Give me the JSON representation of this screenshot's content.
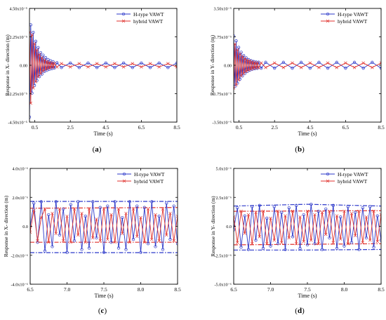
{
  "colors": {
    "h_type": "#2b37c9",
    "hybrid": "#e0322d",
    "axis": "#000000"
  },
  "chart_data": [
    {
      "panel_label": "(a)",
      "type": "line",
      "xlabel": "Time (s)",
      "ylabel": "Response in X- direction (m)",
      "xlim": [
        0.2,
        8.5
      ],
      "ylim": [
        -4.5e-05,
        4.5e-05
      ],
      "xticks": [
        0.5,
        2.5,
        4.5,
        6.5,
        8.5
      ],
      "xtick_labels": [
        "0.5",
        "2.5",
        "4.5",
        "6.5",
        "8.5"
      ],
      "yticks": [
        -4.5e-05,
        -2.25e-05,
        0,
        2.25e-05,
        4.5e-05
      ],
      "ytick_labels": [
        "-4.50x10⁻⁵",
        "-2.25x10⁻⁵",
        "0.00",
        "2.25x10⁻⁵",
        "4.50x10⁻⁵"
      ],
      "legend": {
        "position": "top-right",
        "entries": [
          "H-type VAWT",
          "hybrid VAWT"
        ]
      },
      "series": [
        {
          "name": "H-type VAWT",
          "color": "#2b37c9",
          "x": [
            0.2,
            0.27,
            0.34,
            0.41,
            0.48,
            0.55,
            0.62,
            0.69,
            0.76,
            0.83,
            0.9,
            0.97,
            1.04,
            1.11,
            1.18,
            1.25,
            1.32,
            1.39,
            1.46,
            1.53,
            1.6,
            1.75,
            2.0,
            2.5,
            3.0,
            3.5,
            4.0,
            4.5,
            5.0,
            5.5,
            6.0,
            6.5,
            7.0,
            7.5,
            8.0,
            8.5
          ],
          "y": [
            -4.1e-05,
            3.2e-05,
            -2.2e-05,
            2.6e-05,
            -1.6e-05,
            1.9e-05,
            -1.2e-05,
            1.4e-05,
            -9e-06,
            1e-05,
            -7e-06,
            8e-06,
            -5e-06,
            6e-06,
            -4e-06,
            4.5e-06,
            -3.2e-06,
            3.5e-06,
            -2.6e-06,
            2.8e-06,
            -2.2e-06,
            2e-06,
            -1.8e-06,
            1.8e-06,
            -1.8e-06,
            1.8e-06,
            -1.8e-06,
            1.8e-06,
            -1.8e-06,
            1.8e-06,
            -1.8e-06,
            1.8e-06,
            -1.8e-06,
            1.8e-06,
            -1.8e-06,
            1.8e-06
          ]
        },
        {
          "name": "hybrid VAWT",
          "color": "#e0322d",
          "x": [
            0.2,
            0.27,
            0.34,
            0.41,
            0.48,
            0.55,
            0.62,
            0.69,
            0.76,
            0.83,
            0.9,
            0.97,
            1.04,
            1.11,
            1.18,
            1.25,
            1.32,
            1.39,
            1.46,
            1.53,
            1.6,
            1.75,
            2.0,
            2.5,
            3.0,
            3.5,
            4.0,
            4.5,
            5.0,
            5.5,
            6.0,
            6.5,
            7.0,
            7.5,
            8.0,
            8.5
          ],
          "y": [
            2.6e-05,
            -3e-05,
            2.4e-05,
            -1.8e-05,
            1.7e-05,
            -1.3e-05,
            1.2e-05,
            -9e-06,
            8.5e-06,
            -6.5e-06,
            6e-06,
            -4.5e-06,
            4.2e-06,
            -3.2e-06,
            3e-06,
            -2.4e-06,
            2.2e-06,
            -1.9e-06,
            1.8e-06,
            -1.6e-06,
            1.5e-06,
            -1.4e-06,
            1.3e-06,
            -1.3e-06,
            1.3e-06,
            -1.3e-06,
            1.3e-06,
            -1.3e-06,
            1.3e-06,
            -1.3e-06,
            1.3e-06,
            -1.3e-06,
            1.3e-06,
            -1.3e-06,
            1.3e-06,
            -1.3e-06
          ]
        }
      ]
    },
    {
      "panel_label": "(b)",
      "type": "line",
      "xlabel": "Time (s)",
      "ylabel": "Response in Y- direction (m)",
      "xlim": [
        0.2,
        8.5
      ],
      "ylim": [
        -3.5e-05,
        3.5e-05
      ],
      "xticks": [
        0.5,
        2.5,
        4.5,
        6.5,
        8.5
      ],
      "xtick_labels": [
        "0.5",
        "2.5",
        "4.5",
        "6.5",
        "8.5"
      ],
      "yticks": [
        -3.5e-05,
        -1.75e-05,
        0,
        1.75e-05,
        3.5e-05
      ],
      "ytick_labels": [
        "-3.50x10⁻⁵",
        "-1.75x10⁻⁵",
        "0.00",
        "1.75x10⁻⁵",
        "3.50x10⁻⁵"
      ],
      "legend": {
        "position": "top-right",
        "entries": [
          "H-type VAWT",
          "hybrid VAWT"
        ]
      },
      "series": [
        {
          "name": "H-type VAWT",
          "color": "#2b37c9",
          "x": [
            0.2,
            0.27,
            0.34,
            0.41,
            0.48,
            0.55,
            0.62,
            0.69,
            0.76,
            0.83,
            0.9,
            0.97,
            1.04,
            1.11,
            1.18,
            1.25,
            1.32,
            1.39,
            1.46,
            1.53,
            1.6,
            1.75,
            2.0,
            2.5,
            3.0,
            3.5,
            4.0,
            4.5,
            5.0,
            5.5,
            6.0,
            6.5,
            7.0,
            7.5,
            8.0,
            8.5
          ],
          "y": [
            1.8e-05,
            -1.3e-05,
            1.5e-05,
            -1.1e-05,
            1.1e-05,
            -8.5e-06,
            8e-06,
            -6.5e-06,
            6e-06,
            -5e-06,
            4.6e-06,
            -3.8e-06,
            3.5e-06,
            -3e-06,
            2.8e-06,
            -2.4e-06,
            2.3e-06,
            -2.1e-06,
            2e-06,
            -1.9e-06,
            1.9e-06,
            -1.8e-06,
            1.8e-06,
            -1.8e-06,
            1.8e-06,
            -1.8e-06,
            1.8e-06,
            -1.8e-06,
            1.8e-06,
            -1.8e-06,
            1.8e-06,
            -1.8e-06,
            1.8e-06,
            -1.8e-06,
            1.8e-06,
            -1.8e-06
          ]
        },
        {
          "name": "hybrid VAWT",
          "color": "#e0322d",
          "x": [
            0.2,
            0.27,
            0.34,
            0.41,
            0.48,
            0.55,
            0.62,
            0.69,
            0.76,
            0.83,
            0.9,
            0.97,
            1.04,
            1.11,
            1.18,
            1.25,
            1.32,
            1.39,
            1.46,
            1.53,
            1.6,
            1.75,
            2.0,
            2.5,
            3.0,
            3.5,
            4.0,
            4.5,
            5.0,
            5.5,
            6.0,
            6.5,
            7.0,
            7.5,
            8.0,
            8.5
          ],
          "y": [
            -1.4e-05,
            1.3e-05,
            -1.2e-05,
            9.5e-06,
            -9e-06,
            7e-06,
            -6.5e-06,
            5.3e-06,
            -5e-06,
            4e-06,
            -3.8e-06,
            3.1e-06,
            -2.9e-06,
            2.5e-06,
            -2.3e-06,
            2e-06,
            -1.9e-06,
            1.7e-06,
            -1.6e-06,
            1.5e-06,
            -1.5e-06,
            1.4e-06,
            -1.4e-06,
            1.4e-06,
            -1.4e-06,
            1.4e-06,
            -1.4e-06,
            1.4e-06,
            -1.4e-06,
            1.4e-06,
            -1.4e-06,
            1.4e-06,
            -1.4e-06,
            1.4e-06,
            -1.4e-06,
            1.4e-06
          ]
        }
      ]
    },
    {
      "panel_label": "(c)",
      "type": "line",
      "xlabel": "Time (s)",
      "ylabel": "Response in X- direction (m)",
      "xlim": [
        6.5,
        8.5
      ],
      "ylim": [
        -4e-06,
        4e-06
      ],
      "xticks": [
        6.5,
        7.0,
        7.5,
        8.0,
        8.5
      ],
      "xtick_labels": [
        "6.5",
        "7.0",
        "7.5",
        "8.0",
        "8.5"
      ],
      "yticks": [
        -4e-06,
        -2e-06,
        0,
        2e-06,
        4e-06
      ],
      "ytick_labels": [
        "-4.0x10⁻⁶",
        "-2.0x10⁻⁶",
        "0.0",
        "2.0x10⁻⁶",
        "4.0x10⁻⁶"
      ],
      "legend": {
        "position": "top-right",
        "entries": [
          "H-type VAWT",
          "hybrid VAWT"
        ]
      },
      "envelopes": [
        {
          "series": "H-type VAWT",
          "color": "#2b37c9",
          "x": [
            6.5,
            8.5
          ],
          "upper": [
            1.72e-06,
            1.72e-06
          ],
          "lower": [
            -1.82e-06,
            -1.82e-06
          ]
        },
        {
          "series": "hybrid VAWT",
          "color": "#e0322d",
          "x": [
            6.5,
            8.5
          ],
          "upper": [
            1.25e-06,
            1.3e-06
          ],
          "lower": [
            -1.1e-06,
            -1.1e-06
          ]
        }
      ],
      "series": [
        {
          "name": "H-type VAWT",
          "color": "#2b37c9",
          "x": [
            6.5,
            6.55,
            6.6,
            6.65,
            6.7,
            6.75,
            6.8,
            6.85,
            6.9,
            6.95,
            7.0,
            7.05,
            7.1,
            7.15,
            7.2,
            7.25,
            7.3,
            7.35,
            7.4,
            7.45,
            7.5,
            7.55,
            7.6,
            7.65,
            7.7,
            7.75,
            7.8,
            7.85,
            7.9,
            7.95,
            8.0,
            8.05,
            8.1,
            8.15,
            8.2,
            8.25,
            8.3,
            8.35,
            8.4,
            8.45,
            8.5
          ],
          "y": [
            0,
            1.6e-06,
            -1.1e-06,
            1.7e-06,
            -1.7e-06,
            8e-07,
            -1.4e-06,
            1.7e-06,
            -6e-07,
            1.2e-06,
            -1.8e-06,
            1.5e-06,
            -1e-06,
            1.7e-06,
            -1.6e-06,
            7e-07,
            -1.5e-06,
            1.7e-06,
            -8e-07,
            1.3e-06,
            -1.8e-06,
            1.4e-06,
            -1.1e-06,
            1.7e-06,
            -1.5e-06,
            6e-07,
            -1.6e-06,
            1.7e-06,
            -9e-07,
            1.4e-06,
            -1.8e-06,
            1.3e-06,
            -1.2e-06,
            1.7e-06,
            -1.4e-06,
            7e-07,
            -1.6e-06,
            1.6e-06,
            -9e-07,
            1.4e-06,
            -1.2e-06
          ]
        },
        {
          "name": "hybrid VAWT",
          "color": "#e0322d",
          "x": [
            6.5,
            6.55,
            6.6,
            6.65,
            6.7,
            6.75,
            6.8,
            6.85,
            6.9,
            6.95,
            7.0,
            7.05,
            7.1,
            7.15,
            7.2,
            7.25,
            7.3,
            7.35,
            7.4,
            7.45,
            7.5,
            7.55,
            7.6,
            7.65,
            7.7,
            7.75,
            7.8,
            7.85,
            7.9,
            7.95,
            8.0,
            8.05,
            8.1,
            8.15,
            8.2,
            8.25,
            8.3,
            8.35,
            8.4,
            8.45,
            8.5
          ],
          "y": [
            -4e-07,
            1.1e-06,
            -1e-06,
            6e-07,
            1.2e-06,
            -1.1e-06,
            9e-07,
            -5e-07,
            1.2e-06,
            -1e-06,
            7e-07,
            -1.1e-06,
            1.2e-06,
            -6e-07,
            9e-07,
            -1.1e-06,
            1.2e-06,
            -8e-07,
            5e-07,
            -1e-06,
            1.2e-06,
            -9e-07,
            8e-07,
            -1.1e-06,
            1.2e-06,
            -5e-07,
            9e-07,
            -1.1e-06,
            1.2e-06,
            -7e-07,
            6e-07,
            -1.1e-06,
            1.2e-06,
            -9e-07,
            8e-07,
            -1e-06,
            1.2e-06,
            -6e-07,
            9e-07,
            -1e-06,
            7e-07
          ]
        }
      ]
    },
    {
      "panel_label": "(d)",
      "type": "line",
      "xlabel": "Time (s)",
      "ylabel": "Response in Y- direction (m)",
      "xlim": [
        6.5,
        8.5
      ],
      "ylim": [
        -5e-06,
        5e-06
      ],
      "xticks": [
        6.5,
        7.0,
        7.5,
        8.0,
        8.5
      ],
      "xtick_labels": [
        "6.5",
        "7.0",
        "7.5",
        "8.0",
        "8.5"
      ],
      "yticks": [
        -5e-06,
        -2.5e-06,
        0,
        2.5e-06,
        5e-06
      ],
      "ytick_labels": [
        "-5.0x10⁻⁶",
        "-2.5x10⁻⁶",
        "0.0",
        "2.5x10⁻⁶",
        "5.0x10⁻⁶"
      ],
      "legend": {
        "position": "top-right",
        "entries": [
          "H-type VAWT",
          "hybrid VAWT"
        ]
      },
      "envelopes": [
        {
          "series": "H-type VAWT",
          "color": "#2b37c9",
          "x": [
            6.5,
            7.5,
            8.5
          ],
          "upper": [
            1.75e-06,
            1.9e-06,
            1.75e-06
          ],
          "lower": [
            -2.05e-06,
            -2.05e-06,
            -2e-06
          ]
        },
        {
          "series": "hybrid VAWT",
          "color": "#e0322d",
          "x": [
            6.5,
            8.5
          ],
          "upper": [
            1.3e-06,
            1.35e-06
          ],
          "lower": [
            -1.6e-06,
            -1.5e-06
          ]
        }
      ],
      "series": [
        {
          "name": "H-type VAWT",
          "color": "#2b37c9",
          "x": [
            6.5,
            6.55,
            6.6,
            6.65,
            6.7,
            6.75,
            6.8,
            6.85,
            6.9,
            6.95,
            7.0,
            7.05,
            7.1,
            7.15,
            7.2,
            7.25,
            7.3,
            7.35,
            7.4,
            7.45,
            7.5,
            7.55,
            7.6,
            7.65,
            7.7,
            7.75,
            7.8,
            7.85,
            7.9,
            7.95,
            8.0,
            8.05,
            8.1,
            8.15,
            8.2,
            8.25,
            8.3,
            8.35,
            8.4,
            8.45,
            8.5
          ],
          "y": [
            -3e-07,
            1.6e-06,
            -1.8e-06,
            9e-07,
            -2e-06,
            1.7e-06,
            -1.2e-06,
            1.8e-06,
            -1.9e-06,
            7e-07,
            -1.7e-06,
            1.7e-06,
            -1.5e-06,
            1.2e-06,
            -2e-06,
            1.6e-06,
            -9e-07,
            1.8e-06,
            -1.9e-06,
            1e-06,
            -1.6e-06,
            1.9e-06,
            -1.5e-06,
            1.3e-06,
            -2e-06,
            1.5e-06,
            -1e-06,
            1.8e-06,
            -1.9e-06,
            8e-07,
            -1.7e-06,
            1.7e-06,
            -1.4e-06,
            1.2e-06,
            -2e-06,
            1.6e-06,
            -1e-06,
            1.7e-06,
            -1.8e-06,
            9e-07,
            -1.2e-06
          ]
        },
        {
          "name": "hybrid VAWT",
          "color": "#e0322d",
          "x": [
            6.5,
            6.55,
            6.6,
            6.65,
            6.7,
            6.75,
            6.8,
            6.85,
            6.9,
            6.95,
            7.0,
            7.05,
            7.1,
            7.15,
            7.2,
            7.25,
            7.3,
            7.35,
            7.4,
            7.45,
            7.5,
            7.55,
            7.6,
            7.65,
            7.7,
            7.75,
            7.8,
            7.85,
            7.9,
            7.95,
            8.0,
            8.05,
            8.1,
            8.15,
            8.2,
            8.25,
            8.3,
            8.35,
            8.4,
            8.45,
            8.5
          ],
          "y": [
            8e-07,
            -1.4e-06,
            1.3e-06,
            -6e-07,
            1e-06,
            -1.5e-06,
            1.2e-06,
            -9e-07,
            1.3e-06,
            -1.5e-06,
            7e-07,
            -1.2e-06,
            1.3e-06,
            -1.4e-06,
            9e-07,
            -1e-06,
            1.3e-06,
            -1.5e-06,
            8e-07,
            -1.3e-06,
            1.3e-06,
            -1.2e-06,
            1e-06,
            -1.5e-06,
            1.2e-06,
            -7e-07,
            1.3e-06,
            -1.4e-06,
            9e-07,
            -1.1e-06,
            1.3e-06,
            -1.5e-06,
            1.1e-06,
            -8e-07,
            1.3e-06,
            -1.4e-06,
            8e-07,
            -1.2e-06,
            1.3e-06,
            -1.3e-06,
            1e-06
          ]
        }
      ]
    }
  ]
}
